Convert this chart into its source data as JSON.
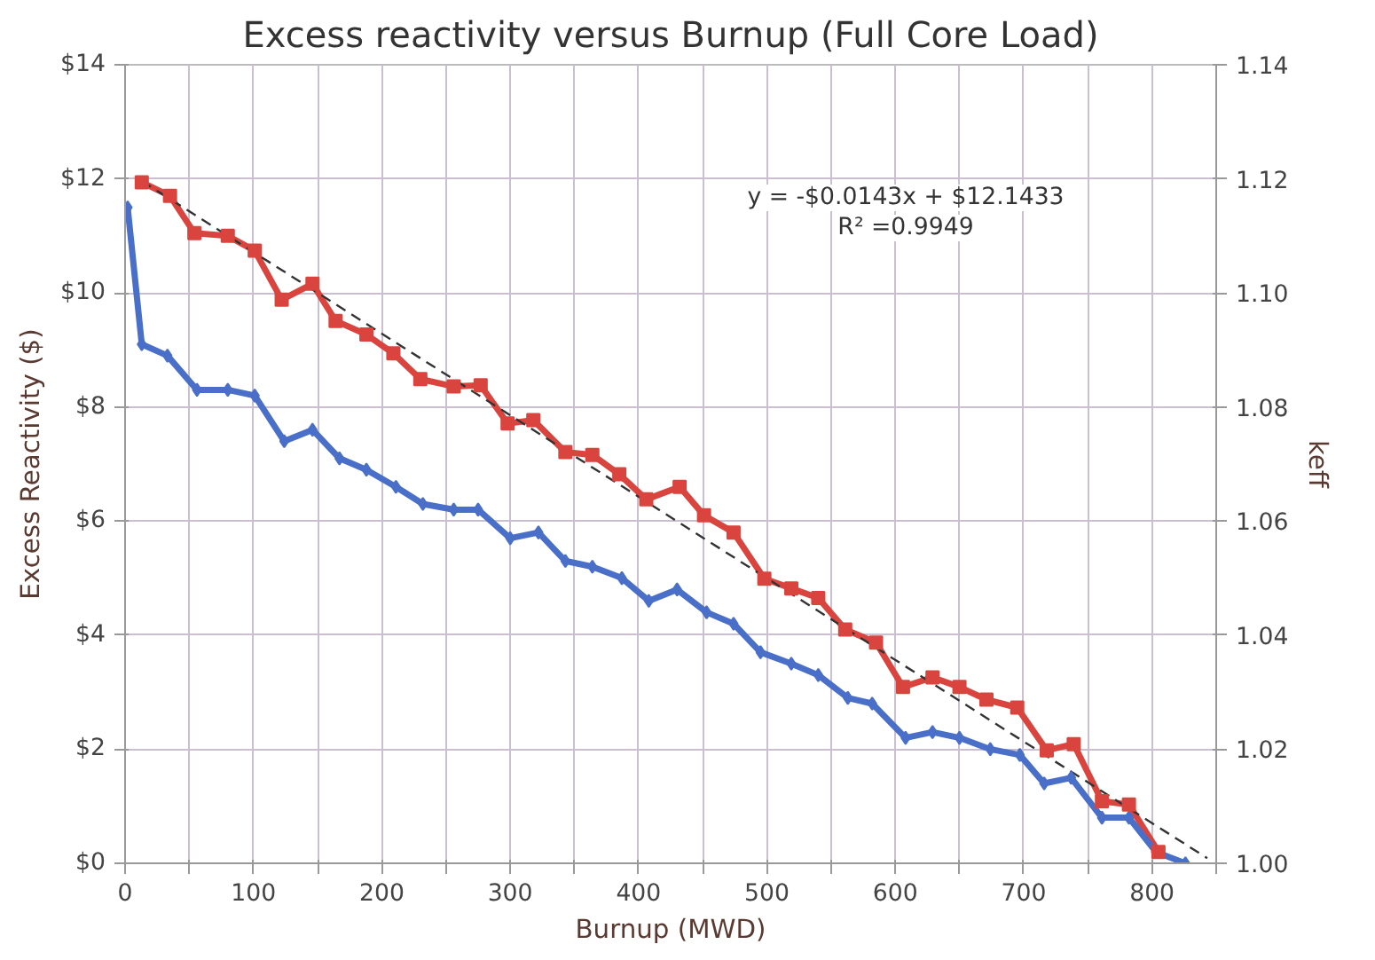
{
  "chart_data": {
    "type": "line",
    "title": "Excess reactivity versus Burnup (Full Core Load)",
    "xlabel": "Burnup (MWD)",
    "ylabel": "Excess Reactivity ($)",
    "y2label": "keff",
    "xlim": [
      0,
      850
    ],
    "xticks": [
      0,
      {
        "value": 50,
        "label": null
      },
      100,
      {
        "value": 150,
        "label": null
      },
      200,
      {
        "value": 250,
        "label": null
      },
      300,
      {
        "value": 350,
        "label": null
      },
      400,
      {
        "value": 450,
        "label": null
      },
      500,
      {
        "value": 550,
        "label": null
      },
      600,
      {
        "value": 650,
        "label": null
      },
      700,
      {
        "value": 750,
        "label": null
      },
      800,
      {
        "value": 850,
        "label": null
      }
    ],
    "ylim": [
      0,
      14
    ],
    "yticks": [
      {
        "value": 0,
        "label": "$0"
      },
      {
        "value": 2,
        "label": "$2"
      },
      {
        "value": 4,
        "label": "$4"
      },
      {
        "value": 6,
        "label": "$6"
      },
      {
        "value": 8,
        "label": "$8"
      },
      {
        "value": 10,
        "label": "$10"
      },
      {
        "value": 12,
        "label": "$12"
      },
      {
        "value": 14,
        "label": "$14"
      }
    ],
    "y2lim": [
      1.0,
      1.14
    ],
    "y2ticks": [
      {
        "value": 1.0,
        "label": "1.00"
      },
      {
        "value": 1.02,
        "label": "1.02"
      },
      {
        "value": 1.04,
        "label": "1.04"
      },
      {
        "value": 1.06,
        "label": "1.06"
      },
      {
        "value": 1.08,
        "label": "1.08"
      },
      {
        "value": 1.1,
        "label": "1.10"
      },
      {
        "value": 1.12,
        "label": "1.12"
      },
      {
        "value": 1.14,
        "label": "1.14"
      }
    ],
    "grid": true,
    "series": [
      {
        "color": "#d9453e",
        "marker": "square",
        "x": [
          13,
          35,
          54,
          80,
          101,
          122,
          146,
          164,
          188,
          209,
          230,
          256,
          277,
          298,
          318,
          343,
          364,
          385,
          406,
          432,
          451,
          474,
          498,
          519,
          540,
          561,
          585,
          606,
          629,
          650,
          671,
          695,
          718,
          739,
          761,
          782,
          805
        ],
        "values": [
          11.94,
          11.7,
          11.05,
          11.0,
          10.74,
          9.88,
          10.16,
          9.51,
          9.27,
          8.94,
          8.49,
          8.36,
          8.38,
          7.71,
          7.77,
          7.21,
          7.16,
          6.82,
          6.38,
          6.6,
          6.1,
          5.8,
          4.99,
          4.82,
          4.65,
          4.1,
          3.87,
          3.09,
          3.26,
          3.09,
          2.87,
          2.73,
          1.98,
          2.09,
          1.09,
          1.03,
          0.2
        ]
      },
      {
        "color": "#4a6fc9",
        "marker": "diamond",
        "axis": "y2",
        "x": [
          2,
          13,
          33,
          56,
          80,
          101,
          124,
          146,
          167,
          188,
          211,
          232,
          256,
          275,
          300,
          322,
          343,
          364,
          387,
          408,
          430,
          453,
          474,
          495,
          519,
          540,
          563,
          582,
          608,
          629,
          650,
          674,
          697,
          716,
          737,
          761,
          782,
          803,
          826
        ],
        "values": [
          1.115,
          1.091,
          1.089,
          1.083,
          1.083,
          1.082,
          1.074,
          1.076,
          1.071,
          1.069,
          1.066,
          1.063,
          1.062,
          1.062,
          1.057,
          1.058,
          1.053,
          1.052,
          1.05,
          1.046,
          1.048,
          1.044,
          1.042,
          1.037,
          1.035,
          1.033,
          1.029,
          1.028,
          1.022,
          1.023,
          1.022,
          1.02,
          1.019,
          1.014,
          1.015,
          1.008,
          1.008,
          1.002,
          1.0
        ]
      },
      {
        "color": "#333333",
        "marker": "none",
        "line_style": "dashed",
        "x": [
          13,
          843
        ],
        "values": [
          11.96,
          0.09
        ]
      }
    ],
    "annotations": [
      "y = -$0.0143x + $12.1433",
      "R² =0.9949"
    ]
  }
}
